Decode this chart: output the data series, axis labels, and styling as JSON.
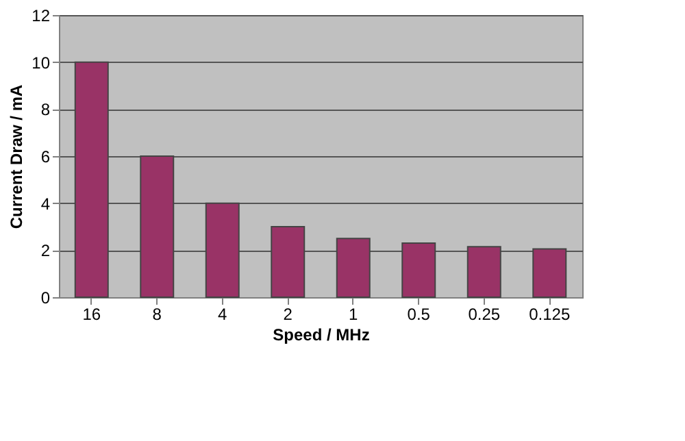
{
  "chart_data": {
    "type": "bar",
    "xlabel": "Speed / MHz",
    "ylabel": "Current Draw / mA",
    "categories": [
      "16",
      "8",
      "4",
      "2",
      "1",
      "0.5",
      "0.25",
      "0.125"
    ],
    "values": [
      10,
      6,
      4,
      3,
      2.5,
      2.3,
      2.15,
      2.05
    ],
    "color": "#993366",
    "ylim": [
      0,
      12
    ],
    "yticks": [
      0,
      2,
      4,
      6,
      8,
      10,
      12
    ],
    "grid": "y"
  }
}
